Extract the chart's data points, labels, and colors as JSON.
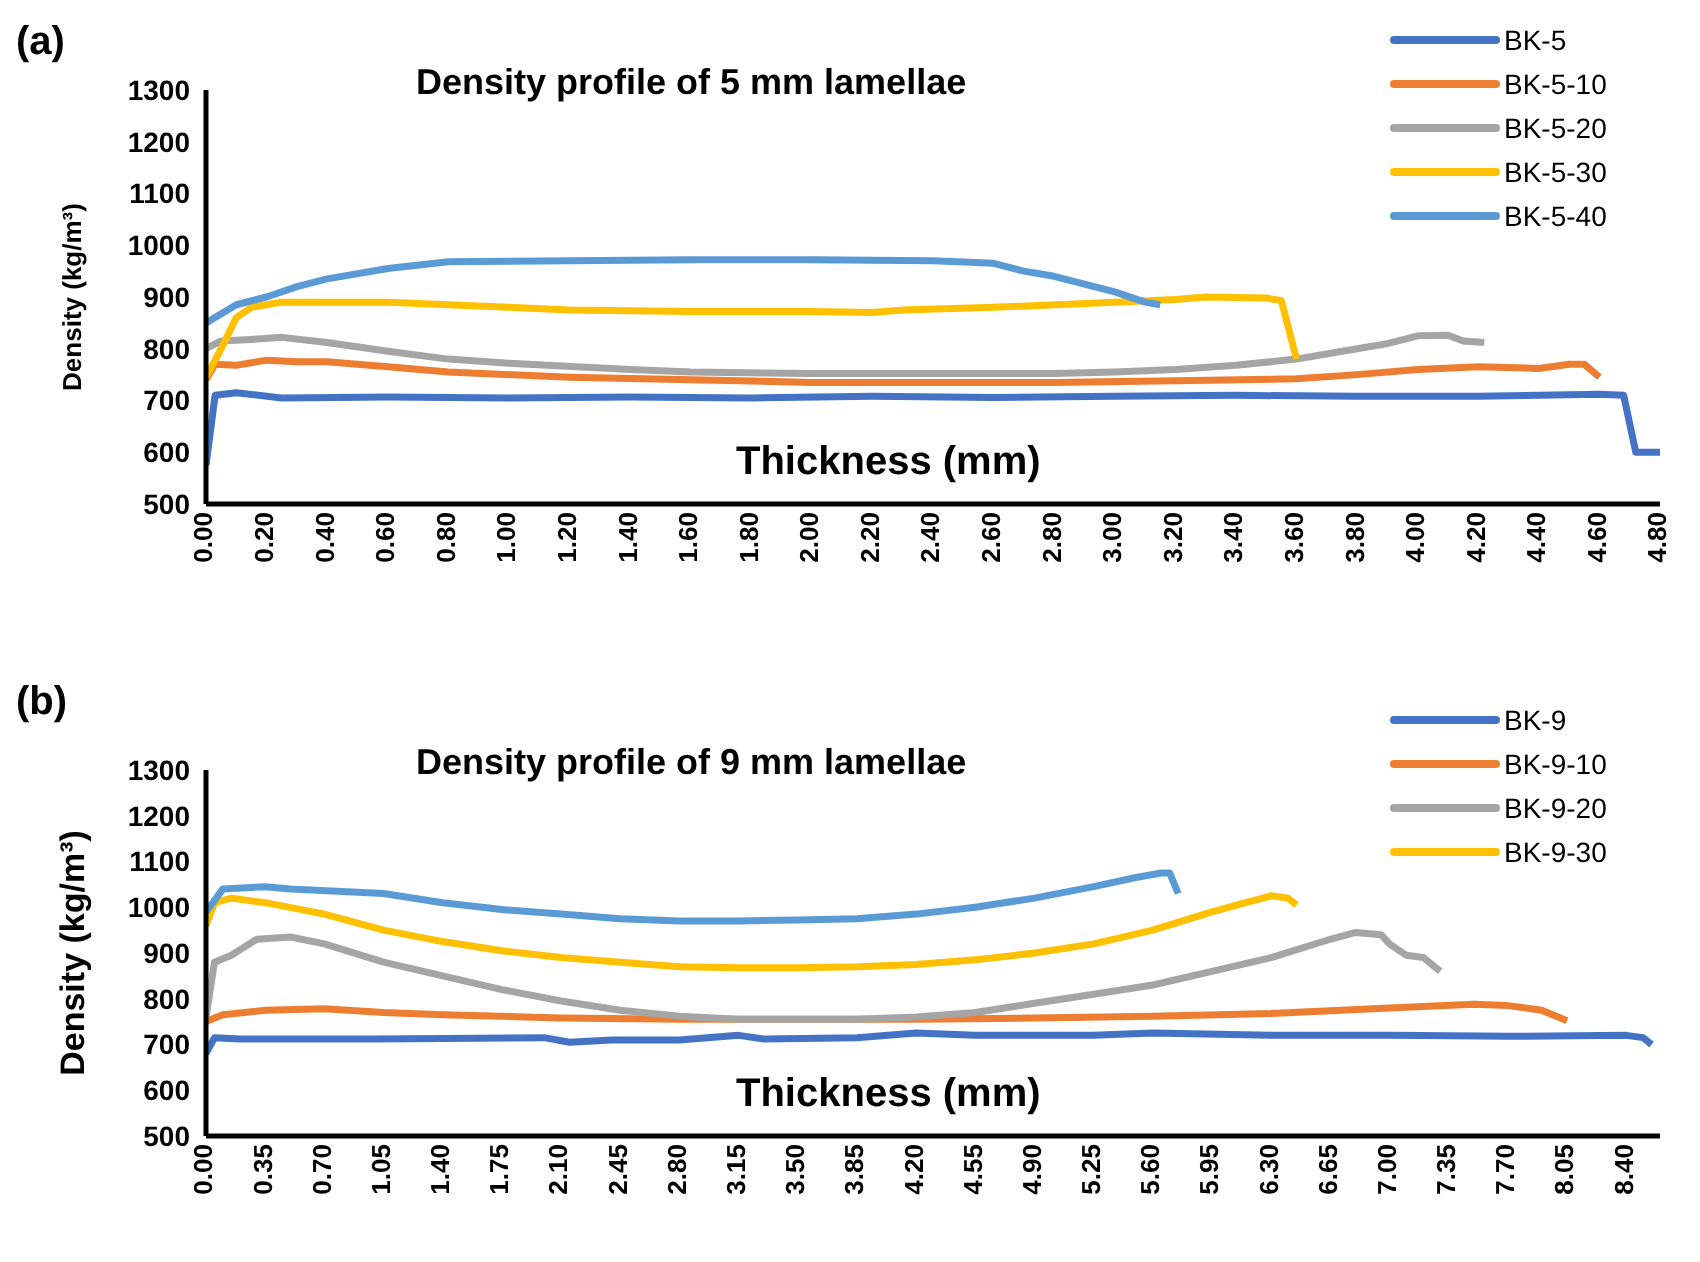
{
  "chart_data": [
    {
      "type": "line",
      "title": "Density profile of 5 mm lamellae",
      "xlabel": "Thickness (mm)",
      "ylabel": "Density (kg/m³)",
      "annotations": [
        "(a)"
      ],
      "legend": "top right",
      "marker": "none",
      "line_style": "solid",
      "xlim": [
        0,
        4.8
      ],
      "ylim": [
        500,
        1300
      ],
      "yticks": [
        500,
        600,
        700,
        800,
        900,
        1000,
        1100,
        1200,
        1300
      ],
      "xticks": [
        {
          "value": 0,
          "label": "0.00"
        },
        {
          "value": 0.2,
          "label": "0.20"
        },
        {
          "value": 0.4,
          "label": "0.40"
        },
        {
          "value": 0.6,
          "label": "0.60"
        },
        {
          "value": 0.8,
          "label": "0.80"
        },
        {
          "value": 1,
          "label": "1.00"
        },
        {
          "value": 1.2,
          "label": "1.20"
        },
        {
          "value": 1.4,
          "label": "1.40"
        },
        {
          "value": 1.6,
          "label": "1.60"
        },
        {
          "value": 1.8,
          "label": "1.80"
        },
        {
          "value": 2,
          "label": "2.00"
        },
        {
          "value": 2.2,
          "label": "2.20"
        },
        {
          "value": 2.4,
          "label": "2.40"
        },
        {
          "value": 2.6,
          "label": "2.60"
        },
        {
          "value": 2.8,
          "label": "2.80"
        },
        {
          "value": 3,
          "label": "3.00"
        },
        {
          "value": 3.2,
          "label": "3.20"
        },
        {
          "value": 3.4,
          "label": "3.40"
        },
        {
          "value": 3.6,
          "label": "3.60"
        },
        {
          "value": 3.8,
          "label": "3.80"
        },
        {
          "value": 4,
          "label": "4.00"
        },
        {
          "value": 4.2,
          "label": "4.20"
        },
        {
          "value": 4.4,
          "label": "4.40"
        },
        {
          "value": 4.6,
          "label": "4.60"
        },
        {
          "value": 4.8,
          "label": "4.80"
        }
      ],
      "series": [
        {
          "name": "BK-5",
          "color": "#4472c4",
          "x": [
            0,
            0.03,
            0.1,
            0.25,
            0.6,
            1.0,
            1.4,
            1.8,
            2.2,
            2.6,
            3.0,
            3.4,
            3.8,
            4.2,
            4.6,
            4.68,
            4.72,
            4.8
          ],
          "values": [
            575,
            710,
            715,
            705,
            707,
            705,
            707,
            705,
            708,
            706,
            708,
            710,
            708,
            708,
            712,
            710,
            600,
            600
          ]
        },
        {
          "name": "BK-5-10",
          "color": "#ed7d31",
          "x": [
            0,
            0.03,
            0.1,
            0.2,
            0.3,
            0.4,
            0.6,
            0.8,
            1.2,
            1.6,
            2.0,
            2.4,
            2.8,
            3.2,
            3.6,
            3.8,
            4.0,
            4.2,
            4.4,
            4.5,
            4.55,
            4.6
          ],
          "values": [
            740,
            770,
            768,
            778,
            775,
            775,
            765,
            755,
            745,
            740,
            735,
            735,
            735,
            738,
            742,
            750,
            760,
            765,
            762,
            770,
            770,
            745
          ]
        },
        {
          "name": "BK-5-20",
          "color": "#a5a5a5",
          "x": [
            0,
            0.05,
            0.15,
            0.25,
            0.4,
            0.6,
            0.8,
            1.0,
            1.4,
            1.6,
            2.0,
            2.4,
            2.8,
            3.0,
            3.2,
            3.4,
            3.6,
            3.8,
            3.9,
            4.0,
            4.1,
            4.15,
            4.22
          ],
          "values": [
            800,
            815,
            818,
            822,
            812,
            795,
            780,
            772,
            760,
            755,
            752,
            752,
            752,
            755,
            760,
            768,
            780,
            800,
            810,
            825,
            826,
            815,
            812
          ]
        },
        {
          "name": "BK-5-30",
          "color": "#ffc000",
          "x": [
            0,
            0.05,
            0.1,
            0.15,
            0.25,
            0.4,
            0.6,
            0.8,
            1.0,
            1.2,
            1.6,
            2.0,
            2.2,
            2.3,
            2.6,
            3.0,
            3.2,
            3.3,
            3.5,
            3.55,
            3.6
          ],
          "values": [
            745,
            800,
            860,
            880,
            890,
            890,
            890,
            885,
            880,
            875,
            872,
            872,
            870,
            875,
            880,
            890,
            895,
            900,
            898,
            893,
            780
          ]
        },
        {
          "name": "BK-5-40",
          "color": "#5b9bd5",
          "x": [
            0,
            0.1,
            0.2,
            0.3,
            0.4,
            0.6,
            0.8,
            1.2,
            1.6,
            2.0,
            2.4,
            2.6,
            2.7,
            2.8,
            3.0,
            3.1,
            3.15
          ],
          "values": [
            850,
            885,
            900,
            920,
            935,
            955,
            968,
            970,
            972,
            972,
            970,
            965,
            950,
            940,
            910,
            890,
            885
          ]
        }
      ]
    },
    {
      "type": "line",
      "title": "Density profile of 9 mm lamellae",
      "xlabel": "Thickness (mm)",
      "ylabel": "Density (kg/m³)",
      "annotations": [
        "(b)"
      ],
      "legend": "top right",
      "marker": "none",
      "line_style": "solid",
      "xlim": [
        0,
        8.6
      ],
      "ylim": [
        500,
        1300
      ],
      "yticks": [
        500,
        600,
        700,
        800,
        900,
        1000,
        1100,
        1200,
        1300
      ],
      "xticks": [
        {
          "value": 0,
          "label": "0.00"
        },
        {
          "value": 0.35,
          "label": "0.35"
        },
        {
          "value": 0.7,
          "label": "0.70"
        },
        {
          "value": 1.05,
          "label": "1.05"
        },
        {
          "value": 1.4,
          "label": "1.40"
        },
        {
          "value": 1.75,
          "label": "1.75"
        },
        {
          "value": 2.1,
          "label": "2.10"
        },
        {
          "value": 2.45,
          "label": "2.45"
        },
        {
          "value": 2.8,
          "label": "2.80"
        },
        {
          "value": 3.15,
          "label": "3.15"
        },
        {
          "value": 3.5,
          "label": "3.50"
        },
        {
          "value": 3.85,
          "label": "3.85"
        },
        {
          "value": 4.2,
          "label": "4.20"
        },
        {
          "value": 4.55,
          "label": "4.55"
        },
        {
          "value": 4.9,
          "label": "4.90"
        },
        {
          "value": 5.25,
          "label": "5.25"
        },
        {
          "value": 5.6,
          "label": "5.60"
        },
        {
          "value": 5.95,
          "label": "5.95"
        },
        {
          "value": 6.3,
          "label": "6.30"
        },
        {
          "value": 6.65,
          "label": "6.65"
        },
        {
          "value": 7.0,
          "label": "7.00"
        },
        {
          "value": 7.35,
          "label": "7.35"
        },
        {
          "value": 7.7,
          "label": "7.70"
        },
        {
          "value": 8.05,
          "label": "8.05"
        },
        {
          "value": 8.4,
          "label": "8.40"
        }
      ],
      "series": [
        {
          "name": "BK-9",
          "color": "#4472c4",
          "x": [
            0,
            0.05,
            0.2,
            1.0,
            2.0,
            2.15,
            2.4,
            2.8,
            3.15,
            3.3,
            3.85,
            4.2,
            4.55,
            5.25,
            5.6,
            6.3,
            7.0,
            7.7,
            8.4,
            8.5,
            8.55
          ],
          "values": [
            680,
            715,
            712,
            712,
            715,
            705,
            710,
            710,
            720,
            712,
            715,
            725,
            720,
            720,
            725,
            720,
            720,
            718,
            720,
            715,
            700
          ]
        },
        {
          "name": "BK-9-10",
          "color": "#ed7d31",
          "x": [
            0,
            0.1,
            0.35,
            0.7,
            1.05,
            1.4,
            2.1,
            2.8,
            3.5,
            4.2,
            4.9,
            5.6,
            6.3,
            7.0,
            7.5,
            7.7,
            7.9,
            8.05
          ],
          "values": [
            750,
            765,
            775,
            778,
            770,
            765,
            758,
            755,
            755,
            755,
            758,
            762,
            768,
            780,
            788,
            785,
            775,
            752
          ]
        },
        {
          "name": "BK-9-20",
          "color": "#a5a5a5",
          "x": [
            0,
            0.05,
            0.15,
            0.3,
            0.5,
            0.7,
            1.05,
            1.4,
            1.75,
            2.1,
            2.45,
            2.8,
            3.15,
            3.5,
            3.85,
            4.2,
            4.55,
            4.9,
            5.25,
            5.6,
            5.95,
            6.3,
            6.65,
            6.8,
            6.95,
            7.0,
            7.1,
            7.2,
            7.3
          ],
          "values": [
            760,
            880,
            895,
            930,
            935,
            920,
            880,
            850,
            820,
            795,
            775,
            762,
            755,
            755,
            755,
            760,
            770,
            790,
            810,
            830,
            860,
            890,
            930,
            945,
            940,
            920,
            895,
            890,
            860
          ]
        },
        {
          "name": "BK-9-30",
          "color": "#ffc000",
          "x": [
            0,
            0.05,
            0.15,
            0.35,
            0.7,
            1.05,
            1.4,
            1.75,
            2.1,
            2.45,
            2.8,
            3.15,
            3.5,
            3.85,
            4.2,
            4.55,
            4.9,
            5.25,
            5.6,
            5.95,
            6.1,
            6.3,
            6.4,
            6.45
          ],
          "values": [
            960,
            1010,
            1020,
            1010,
            985,
            950,
            925,
            905,
            890,
            880,
            870,
            868,
            868,
            870,
            875,
            885,
            900,
            920,
            950,
            990,
            1005,
            1025,
            1020,
            1005
          ]
        },
        {
          "color": "#5b9bd5",
          "x": [
            0,
            0.1,
            0.35,
            0.5,
            1.05,
            1.4,
            1.75,
            2.1,
            2.45,
            2.8,
            3.15,
            3.5,
            3.85,
            4.2,
            4.55,
            4.9,
            5.25,
            5.5,
            5.65,
            5.7,
            5.75
          ],
          "values": [
            990,
            1040,
            1045,
            1040,
            1030,
            1010,
            995,
            985,
            975,
            970,
            970,
            972,
            975,
            985,
            1000,
            1020,
            1045,
            1065,
            1075,
            1075,
            1030
          ]
        }
      ]
    }
  ]
}
